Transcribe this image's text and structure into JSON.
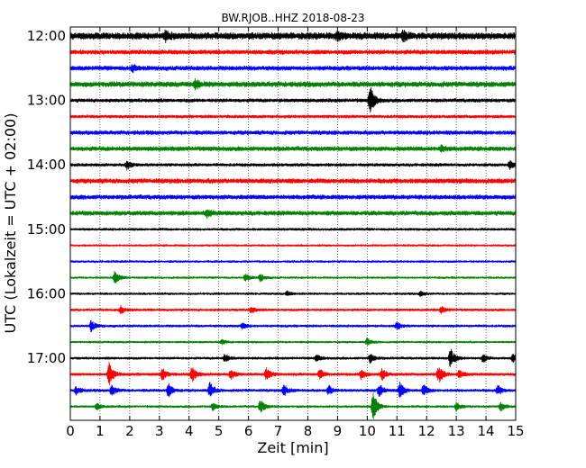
{
  "chart_data": {
    "type": "line",
    "title": "BW.RJOB..HHZ 2018-08-23",
    "xlabel": "Zeit  [min]",
    "ylabel": "UTC (Lokalzeit = UTC + 02:00)",
    "xlim": [
      0,
      15
    ],
    "x_ticks": [
      "0",
      "1",
      "2",
      "3",
      "4",
      "5",
      "6",
      "7",
      "8",
      "9",
      "10",
      "11",
      "12",
      "13",
      "14",
      "15"
    ],
    "y_tick_labels": [
      "12:00",
      "13:00",
      "14:00",
      "15:00",
      "16:00",
      "17:00"
    ],
    "grid": "vertical dotted lines at each minute",
    "color_cycle": [
      "#000000",
      "#ff0000",
      "#0000ff",
      "#008000"
    ],
    "traces": [
      {
        "start": "12:00",
        "color": "#000000",
        "amplitude": 0.45,
        "events": [
          {
            "t": 3.2,
            "a": 0.5
          },
          {
            "t": 9.0,
            "a": 0.4
          },
          {
            "t": 11.2,
            "a": 0.6
          }
        ]
      },
      {
        "start": "12:15",
        "color": "#ff0000",
        "amplitude": 0.3,
        "events": []
      },
      {
        "start": "12:30",
        "color": "#0000ff",
        "amplitude": 0.3,
        "events": [
          {
            "t": 2.1,
            "a": 0.4
          }
        ]
      },
      {
        "start": "12:45",
        "color": "#008000",
        "amplitude": 0.35,
        "events": [
          {
            "t": 4.2,
            "a": 0.5
          }
        ]
      },
      {
        "start": "13:00",
        "color": "#000000",
        "amplitude": 0.25,
        "events": [
          {
            "t": 10.1,
            "a": 1.8
          }
        ]
      },
      {
        "start": "13:15",
        "color": "#ff0000",
        "amplitude": 0.22,
        "events": []
      },
      {
        "start": "13:30",
        "color": "#0000ff",
        "amplitude": 0.28,
        "events": []
      },
      {
        "start": "13:45",
        "color": "#008000",
        "amplitude": 0.3,
        "events": [
          {
            "t": 12.5,
            "a": 0.4
          }
        ]
      },
      {
        "start": "14:00",
        "color": "#000000",
        "amplitude": 0.22,
        "events": [
          {
            "t": 1.9,
            "a": 0.5
          },
          {
            "t": 14.8,
            "a": 0.5
          }
        ]
      },
      {
        "start": "14:15",
        "color": "#ff0000",
        "amplitude": 0.32,
        "events": []
      },
      {
        "start": "14:30",
        "color": "#0000ff",
        "amplitude": 0.3,
        "events": []
      },
      {
        "start": "14:45",
        "color": "#008000",
        "amplitude": 0.3,
        "events": [
          {
            "t": 4.6,
            "a": 0.4
          }
        ]
      },
      {
        "start": "15:00",
        "color": "#000000",
        "amplitude": 0.18,
        "events": []
      },
      {
        "start": "15:15",
        "color": "#ff0000",
        "amplitude": 0.15,
        "events": []
      },
      {
        "start": "15:30",
        "color": "#0000ff",
        "amplitude": 0.16,
        "events": []
      },
      {
        "start": "15:45",
        "color": "#008000",
        "amplitude": 0.15,
        "events": [
          {
            "t": 1.5,
            "a": 0.9
          },
          {
            "t": 5.9,
            "a": 0.5
          },
          {
            "t": 6.4,
            "a": 0.5
          }
        ]
      },
      {
        "start": "16:00",
        "color": "#000000",
        "amplitude": 0.16,
        "events": [
          {
            "t": 7.3,
            "a": 0.3
          },
          {
            "t": 11.8,
            "a": 0.3
          }
        ]
      },
      {
        "start": "16:15",
        "color": "#ff0000",
        "amplitude": 0.18,
        "events": [
          {
            "t": 1.7,
            "a": 0.5
          },
          {
            "t": 6.1,
            "a": 0.4
          },
          {
            "t": 12.5,
            "a": 0.4
          }
        ]
      },
      {
        "start": "16:30",
        "color": "#0000ff",
        "amplitude": 0.18,
        "events": [
          {
            "t": 0.7,
            "a": 0.7
          },
          {
            "t": 5.8,
            "a": 0.4
          },
          {
            "t": 11.0,
            "a": 0.5
          }
        ]
      },
      {
        "start": "16:45",
        "color": "#008000",
        "amplitude": 0.15,
        "events": [
          {
            "t": 10.0,
            "a": 0.5
          },
          {
            "t": 5.1,
            "a": 0.3
          }
        ]
      },
      {
        "start": "17:00",
        "color": "#000000",
        "amplitude": 0.18,
        "events": [
          {
            "t": 5.2,
            "a": 0.5
          },
          {
            "t": 8.3,
            "a": 0.4
          },
          {
            "t": 10.1,
            "a": 0.6
          },
          {
            "t": 12.8,
            "a": 1.3
          },
          {
            "t": 13.9,
            "a": 0.5
          },
          {
            "t": 14.9,
            "a": 0.5
          }
        ]
      },
      {
        "start": "17:15",
        "color": "#ff0000",
        "amplitude": 0.2,
        "events": [
          {
            "t": 1.3,
            "a": 1.5
          },
          {
            "t": 3.1,
            "a": 0.8
          },
          {
            "t": 4.1,
            "a": 1.0
          },
          {
            "t": 5.4,
            "a": 0.6
          },
          {
            "t": 6.6,
            "a": 0.8
          },
          {
            "t": 8.4,
            "a": 0.6
          },
          {
            "t": 9.8,
            "a": 0.6
          },
          {
            "t": 10.5,
            "a": 0.7
          },
          {
            "t": 12.4,
            "a": 1.2
          },
          {
            "t": 13.1,
            "a": 0.6
          }
        ]
      },
      {
        "start": "17:30",
        "color": "#0000ff",
        "amplitude": 0.2,
        "events": [
          {
            "t": 0.2,
            "a": 0.5
          },
          {
            "t": 1.4,
            "a": 0.7
          },
          {
            "t": 3.3,
            "a": 0.9
          },
          {
            "t": 4.7,
            "a": 1.0
          },
          {
            "t": 7.2,
            "a": 0.7
          },
          {
            "t": 8.7,
            "a": 0.6
          },
          {
            "t": 10.4,
            "a": 0.8
          },
          {
            "t": 11.1,
            "a": 1.0
          },
          {
            "t": 11.9,
            "a": 0.7
          },
          {
            "t": 14.4,
            "a": 0.6
          }
        ]
      },
      {
        "start": "17:45",
        "color": "#008000",
        "amplitude": 0.16,
        "events": [
          {
            "t": 0.9,
            "a": 0.4
          },
          {
            "t": 4.8,
            "a": 0.5
          },
          {
            "t": 6.4,
            "a": 0.9
          },
          {
            "t": 10.2,
            "a": 2.0
          },
          {
            "t": 13.0,
            "a": 0.6
          },
          {
            "t": 14.5,
            "a": 0.6
          }
        ]
      }
    ]
  }
}
